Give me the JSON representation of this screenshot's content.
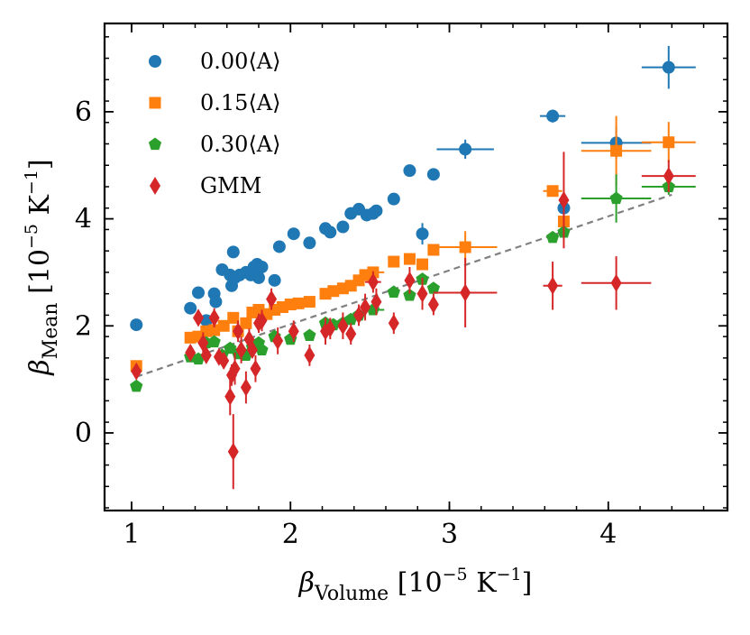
{
  "chart_data": {
    "type": "scatter",
    "xlabel": {
      "symbol": "β",
      "subscript": "Volume",
      "units_prefix": "[10",
      "units_exp": "−5",
      "units_mid": " K",
      "units_exp2": "−1",
      "units_suffix": "]"
    },
    "ylabel": {
      "symbol": "β",
      "subscript": "Mean",
      "units_prefix": "[10",
      "units_exp": "−5",
      "units_mid": " K",
      "units_exp2": "−1",
      "units_suffix": "]"
    },
    "xlim": [
      0.83,
      4.75
    ],
    "ylim": [
      -1.45,
      7.65
    ],
    "xticks": [
      1,
      2,
      3,
      4
    ],
    "yticks": [
      0,
      2,
      4,
      6
    ],
    "xtick_labels": [
      "1",
      "2",
      "3",
      "4"
    ],
    "ytick_labels": [
      "0",
      "2",
      "4",
      "6"
    ],
    "grid": false,
    "legend_position": "upper-left",
    "reference_line": {
      "style": "dashed",
      "color": "#808080",
      "x": [
        1.03,
        4.4
      ],
      "y": [
        1.05,
        4.45
      ]
    },
    "series": [
      {
        "name": "0.00⟨A⟩",
        "marker": "circle",
        "color": "#1f77b4",
        "points": [
          {
            "x": 1.03,
            "y": 2.02
          },
          {
            "x": 1.37,
            "y": 2.33
          },
          {
            "x": 1.42,
            "y": 2.62
          },
          {
            "x": 1.47,
            "y": 2.1
          },
          {
            "x": 1.52,
            "y": 2.6
          },
          {
            "x": 1.53,
            "y": 2.45
          },
          {
            "x": 1.57,
            "y": 3.05
          },
          {
            "x": 1.62,
            "y": 2.95
          },
          {
            "x": 1.63,
            "y": 2.75
          },
          {
            "x": 1.64,
            "y": 3.38
          },
          {
            "x": 1.65,
            "y": 2.9
          },
          {
            "x": 1.68,
            "y": 2.95
          },
          {
            "x": 1.72,
            "y": 3.0
          },
          {
            "x": 1.75,
            "y": 2.95
          },
          {
            "x": 1.77,
            "y": 3.1
          },
          {
            "x": 1.78,
            "y": 2.95
          },
          {
            "x": 1.79,
            "y": 3.15
          },
          {
            "x": 1.8,
            "y": 2.9
          },
          {
            "x": 1.82,
            "y": 3.1
          },
          {
            "x": 1.9,
            "y": 2.85
          },
          {
            "x": 1.93,
            "y": 3.48
          },
          {
            "x": 2.02,
            "y": 3.72
          },
          {
            "x": 2.12,
            "y": 3.55
          },
          {
            "x": 2.22,
            "y": 3.82
          },
          {
            "x": 2.25,
            "y": 3.75
          },
          {
            "x": 2.33,
            "y": 3.85
          },
          {
            "x": 2.38,
            "y": 4.1
          },
          {
            "x": 2.43,
            "y": 4.18
          },
          {
            "x": 2.48,
            "y": 4.07
          },
          {
            "x": 2.52,
            "y": 4.1,
            "xerr": 0.05
          },
          {
            "x": 2.54,
            "y": 4.15
          },
          {
            "x": 2.65,
            "y": 4.37
          },
          {
            "x": 2.75,
            "y": 4.9
          },
          {
            "x": 2.83,
            "y": 3.72,
            "yerr": 0.2
          },
          {
            "x": 2.9,
            "y": 4.83
          },
          {
            "x": 3.1,
            "y": 5.3,
            "xerr": 0.18,
            "yerr": 0.18
          },
          {
            "x": 3.65,
            "y": 5.92,
            "xerr": 0.08,
            "yerr": 0.12
          },
          {
            "x": 3.72,
            "y": 4.2
          },
          {
            "x": 4.05,
            "y": 5.42,
            "xerr": 0.22,
            "yerr": 0.3
          },
          {
            "x": 4.38,
            "y": 6.83,
            "xerr": 0.17,
            "yerr": 0.4
          }
        ]
      },
      {
        "name": "0.15⟨A⟩",
        "marker": "square",
        "color": "#ff7f0e",
        "points": [
          {
            "x": 1.03,
            "y": 1.25
          },
          {
            "x": 1.37,
            "y": 1.78
          },
          {
            "x": 1.42,
            "y": 1.8
          },
          {
            "x": 1.47,
            "y": 1.9
          },
          {
            "x": 1.52,
            "y": 1.92
          },
          {
            "x": 1.58,
            "y": 2.0
          },
          {
            "x": 1.64,
            "y": 2.15
          },
          {
            "x": 1.67,
            "y": 1.9
          },
          {
            "x": 1.72,
            "y": 2.05
          },
          {
            "x": 1.76,
            "y": 2.25
          },
          {
            "x": 1.8,
            "y": 2.3
          },
          {
            "x": 1.85,
            "y": 2.22
          },
          {
            "x": 1.9,
            "y": 2.3
          },
          {
            "x": 1.95,
            "y": 2.35
          },
          {
            "x": 2.0,
            "y": 2.4
          },
          {
            "x": 2.05,
            "y": 2.42
          },
          {
            "x": 2.12,
            "y": 2.45
          },
          {
            "x": 2.22,
            "y": 2.6
          },
          {
            "x": 2.27,
            "y": 2.65
          },
          {
            "x": 2.33,
            "y": 2.7
          },
          {
            "x": 2.38,
            "y": 2.75
          },
          {
            "x": 2.43,
            "y": 2.85
          },
          {
            "x": 2.47,
            "y": 2.95
          },
          {
            "x": 2.52,
            "y": 3.0,
            "xerr": 0.07,
            "yerr": 0.1
          },
          {
            "x": 2.65,
            "y": 3.2
          },
          {
            "x": 2.75,
            "y": 3.25
          },
          {
            "x": 2.83,
            "y": 3.15
          },
          {
            "x": 2.9,
            "y": 3.42
          },
          {
            "x": 3.1,
            "y": 3.47,
            "xerr": 0.2,
            "yerr": 0.3
          },
          {
            "x": 3.65,
            "y": 4.52,
            "xerr": 0.06
          },
          {
            "x": 3.72,
            "y": 3.95
          },
          {
            "x": 4.05,
            "y": 5.27,
            "xerr": 0.22,
            "yerr": 0.65
          },
          {
            "x": 4.38,
            "y": 5.43,
            "xerr": 0.17,
            "yerr": 0.38
          }
        ]
      },
      {
        "name": "0.30⟨A⟩",
        "marker": "pentagon",
        "color": "#2ca02c",
        "points": [
          {
            "x": 1.03,
            "y": 0.87
          },
          {
            "x": 1.37,
            "y": 1.42
          },
          {
            "x": 1.42,
            "y": 1.38
          },
          {
            "x": 1.47,
            "y": 1.68
          },
          {
            "x": 1.52,
            "y": 1.7
          },
          {
            "x": 1.57,
            "y": 1.45
          },
          {
            "x": 1.62,
            "y": 1.58
          },
          {
            "x": 1.67,
            "y": 1.48
          },
          {
            "x": 1.72,
            "y": 1.45
          },
          {
            "x": 1.76,
            "y": 1.6
          },
          {
            "x": 1.8,
            "y": 1.68
          },
          {
            "x": 1.82,
            "y": 1.55
          },
          {
            "x": 1.9,
            "y": 1.8
          },
          {
            "x": 2.0,
            "y": 1.75
          },
          {
            "x": 2.12,
            "y": 1.82
          },
          {
            "x": 2.22,
            "y": 2.05
          },
          {
            "x": 2.27,
            "y": 2.02
          },
          {
            "x": 2.33,
            "y": 2.05
          },
          {
            "x": 2.38,
            "y": 2.12
          },
          {
            "x": 2.43,
            "y": 2.2
          },
          {
            "x": 2.52,
            "y": 2.3,
            "xerr": 0.07,
            "yerr": 0.1
          },
          {
            "x": 2.65,
            "y": 2.63
          },
          {
            "x": 2.75,
            "y": 2.57
          },
          {
            "x": 2.83,
            "y": 2.87
          },
          {
            "x": 2.9,
            "y": 2.7
          },
          {
            "x": 3.65,
            "y": 3.65
          },
          {
            "x": 3.72,
            "y": 3.75
          },
          {
            "x": 4.05,
            "y": 4.38,
            "xerr": 0.22,
            "yerr": 0.45
          },
          {
            "x": 4.38,
            "y": 4.6,
            "xerr": 0.17,
            "yerr": 0.15
          }
        ]
      },
      {
        "name": "GMM",
        "marker": "thin_diamond",
        "color": "#d62728",
        "points": [
          {
            "x": 1.03,
            "y": 1.15,
            "yerr": 0.12
          },
          {
            "x": 1.37,
            "y": 1.5,
            "yerr": 0.12
          },
          {
            "x": 1.42,
            "y": 2.15,
            "yerr": 0.15
          },
          {
            "x": 1.45,
            "y": 1.68,
            "yerr": 0.2
          },
          {
            "x": 1.47,
            "y": 1.45,
            "yerr": 0.12
          },
          {
            "x": 1.52,
            "y": 2.15,
            "yerr": 0.18
          },
          {
            "x": 1.55,
            "y": 1.42,
            "yerr": 0.12
          },
          {
            "x": 1.58,
            "y": 1.35,
            "yerr": 0.15
          },
          {
            "x": 1.62,
            "y": 0.68,
            "yerr": 0.35
          },
          {
            "x": 1.63,
            "y": 1.08,
            "yerr": 0.2
          },
          {
            "x": 1.64,
            "y": -0.35,
            "yerr": 0.7
          },
          {
            "x": 1.65,
            "y": 1.2,
            "yerr": 0.3
          },
          {
            "x": 1.67,
            "y": 1.9,
            "yerr": 0.2
          },
          {
            "x": 1.69,
            "y": 1.55,
            "yerr": 0.25
          },
          {
            "x": 1.72,
            "y": 0.85,
            "yerr": 0.3
          },
          {
            "x": 1.74,
            "y": 1.75,
            "yerr": 0.2
          },
          {
            "x": 1.76,
            "y": 1.55,
            "yerr": 0.15
          },
          {
            "x": 1.78,
            "y": 1.2,
            "yerr": 0.25
          },
          {
            "x": 1.8,
            "y": 2.05,
            "yerr": 0.18
          },
          {
            "x": 1.82,
            "y": 2.1,
            "yerr": 0.2
          },
          {
            "x": 1.88,
            "y": 2.5,
            "yerr": 0.2
          },
          {
            "x": 1.92,
            "y": 1.72,
            "yerr": 0.25
          },
          {
            "x": 2.02,
            "y": 1.9,
            "yerr": 0.2
          },
          {
            "x": 2.12,
            "y": 1.45,
            "yerr": 0.2
          },
          {
            "x": 2.22,
            "y": 1.9,
            "yerr": 0.25
          },
          {
            "x": 2.25,
            "y": 1.95,
            "yerr": 0.2
          },
          {
            "x": 2.33,
            "y": 2.0,
            "yerr": 0.25
          },
          {
            "x": 2.38,
            "y": 1.85,
            "yerr": 0.2
          },
          {
            "x": 2.43,
            "y": 2.2,
            "yerr": 0.2
          },
          {
            "x": 2.47,
            "y": 2.35,
            "yerr": 0.25
          },
          {
            "x": 2.52,
            "y": 2.82,
            "xerr": 0.05,
            "yerr": 0.2
          },
          {
            "x": 2.54,
            "y": 2.45,
            "yerr": 0.25
          },
          {
            "x": 2.65,
            "y": 2.05,
            "yerr": 0.2
          },
          {
            "x": 2.75,
            "y": 2.85,
            "yerr": 0.25
          },
          {
            "x": 2.83,
            "y": 2.6,
            "yerr": 0.3
          },
          {
            "x": 2.9,
            "y": 2.4,
            "yerr": 0.2
          },
          {
            "x": 3.1,
            "y": 2.62,
            "xerr": 0.2,
            "yerr": 0.65
          },
          {
            "x": 3.65,
            "y": 2.75,
            "xerr": 0.06,
            "yerr": 0.45
          },
          {
            "x": 3.72,
            "y": 4.35,
            "yerr": 0.9
          },
          {
            "x": 4.05,
            "y": 2.8,
            "xerr": 0.22,
            "yerr": 0.5
          },
          {
            "x": 4.38,
            "y": 4.8,
            "xerr": 0.17,
            "yerr": 0.3
          }
        ]
      }
    ]
  }
}
